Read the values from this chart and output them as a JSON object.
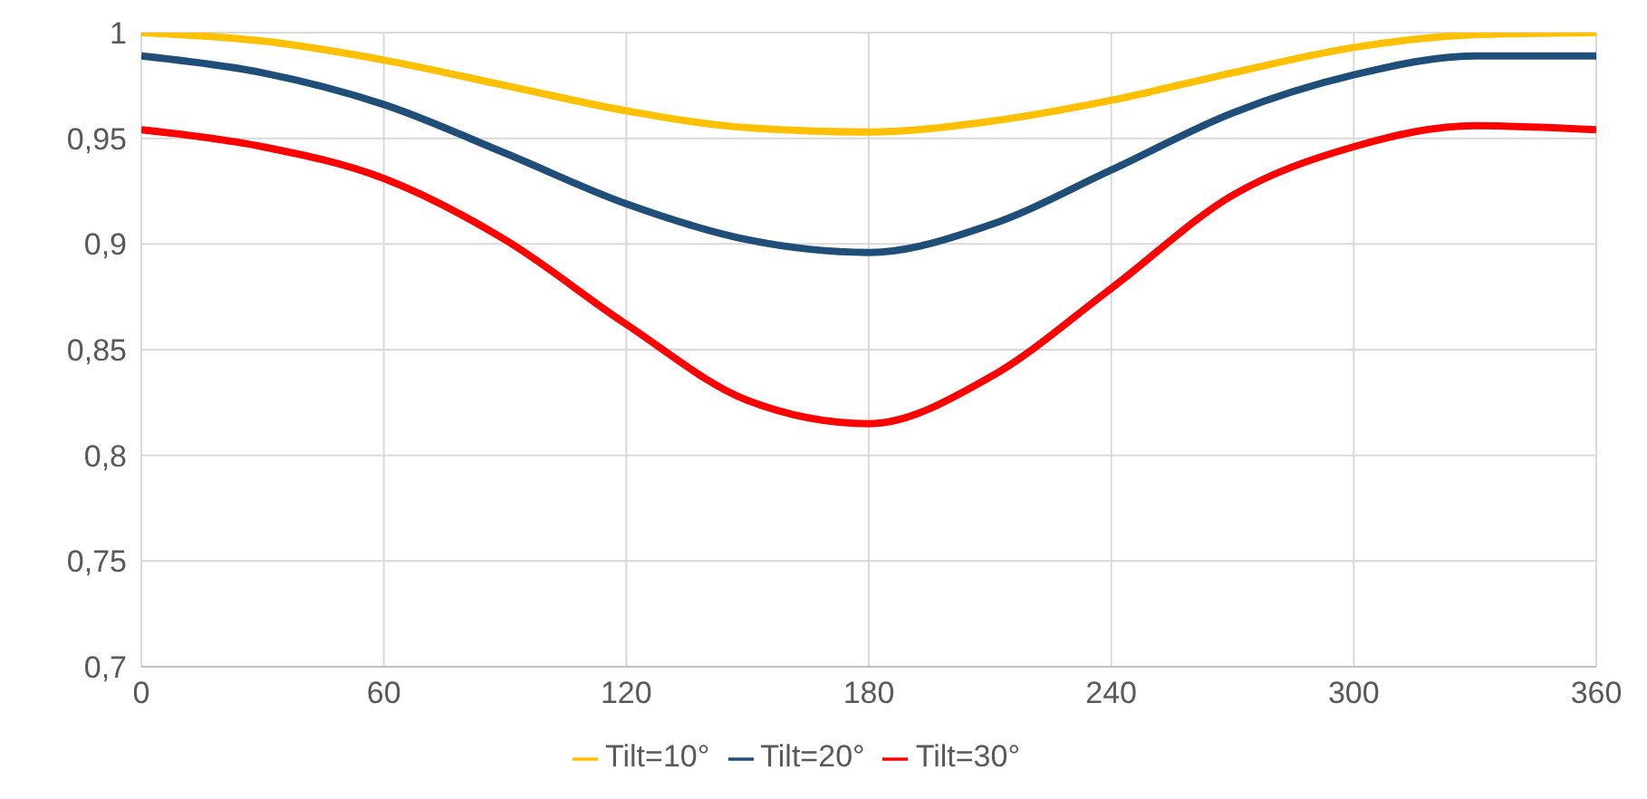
{
  "chart_data": {
    "type": "line",
    "x": [
      0,
      30,
      60,
      90,
      120,
      150,
      180,
      210,
      240,
      270,
      300,
      330,
      360
    ],
    "series": [
      {
        "name": "Tilt=10°",
        "color": "#ffc000",
        "values": [
          1.0,
          0.996,
          0.987,
          0.975,
          0.963,
          0.955,
          0.953,
          0.958,
          0.968,
          0.981,
          0.993,
          0.999,
          1.0
        ]
      },
      {
        "name": "Tilt=20°",
        "color": "#1f4e79",
        "values": [
          0.989,
          0.981,
          0.966,
          0.943,
          0.919,
          0.902,
          0.896,
          0.909,
          0.935,
          0.962,
          0.98,
          0.989,
          0.989
        ]
      },
      {
        "name": "Tilt=30°",
        "color": "#ff0000",
        "values": [
          0.954,
          0.946,
          0.931,
          0.902,
          0.862,
          0.826,
          0.815,
          0.837,
          0.879,
          0.923,
          0.946,
          0.956,
          0.954
        ]
      }
    ],
    "xlim": [
      0,
      360
    ],
    "xticks": [
      0,
      60,
      120,
      180,
      240,
      300,
      360
    ],
    "ylim": [
      0.7,
      1
    ],
    "yticks": [
      {
        "value": 0.7,
        "label": "0,7"
      },
      {
        "value": 0.75,
        "label": "0,75"
      },
      {
        "value": 0.8,
        "label": "0,8"
      },
      {
        "value": 0.85,
        "label": "0,85"
      },
      {
        "value": 0.9,
        "label": "0,9"
      },
      {
        "value": 0.95,
        "label": "0,95"
      },
      {
        "value": 1,
        "label": "1"
      }
    ],
    "grid": true,
    "legend": "bottom",
    "marker": "none",
    "line_style": "solid"
  }
}
